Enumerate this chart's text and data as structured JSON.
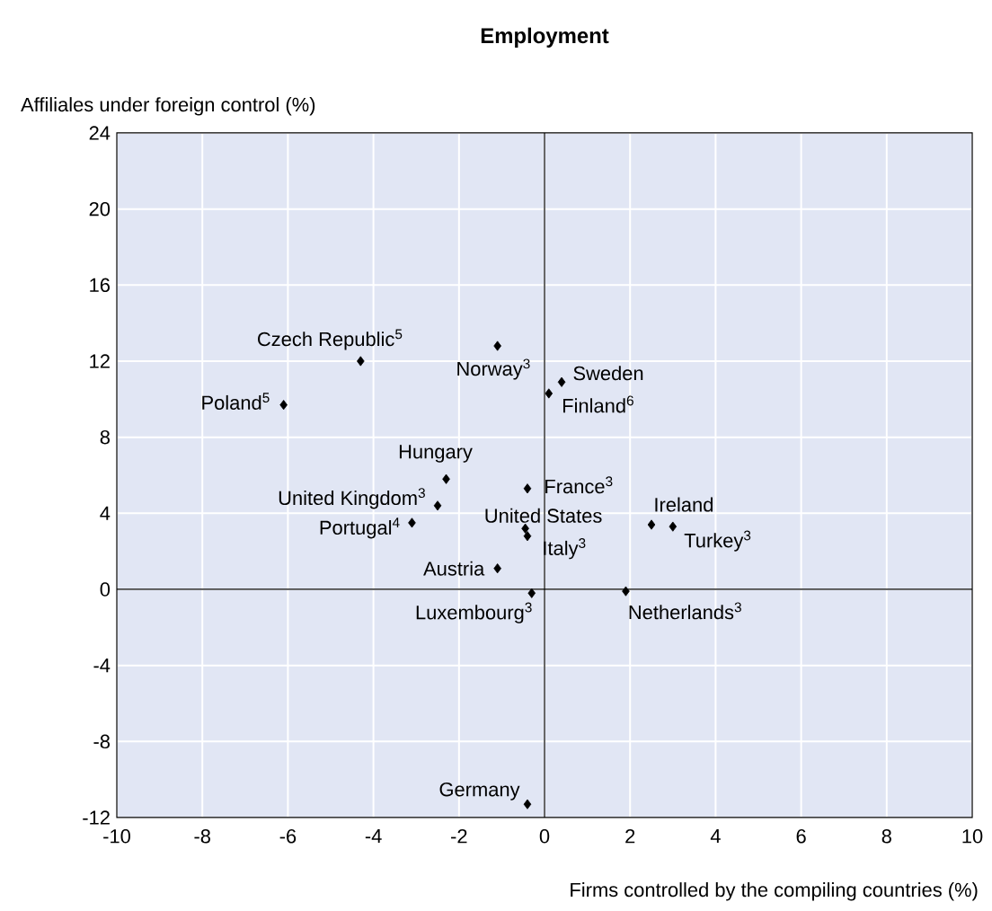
{
  "chart_data": {
    "type": "scatter",
    "title": "Employment",
    "xlabel": "Firms controlled by the compiling countries (%)",
    "ylabel": "Affiliales under foreign control (%)",
    "xlim": [
      -10,
      10
    ],
    "xticks": [
      -10,
      -8,
      -6,
      -4,
      -2,
      0,
      2,
      4,
      6,
      8,
      10
    ],
    "ylim": [
      -12,
      24
    ],
    "yticks": [
      -12,
      -8,
      -4,
      0,
      4,
      8,
      12,
      16,
      20,
      24
    ],
    "grid": true,
    "marker": "diamond",
    "series": [
      {
        "color": "#000000",
        "x": [
          -4.3,
          -1.1,
          -6.1,
          0.4,
          0.1,
          -2.3,
          -2.5,
          -3.1,
          -0.4,
          -0.45,
          -0.4,
          -1.1,
          -0.3,
          1.9,
          2.5,
          3.0,
          -0.4
        ],
        "values": [
          12.0,
          12.8,
          9.7,
          10.9,
          10.3,
          5.8,
          4.4,
          3.5,
          5.3,
          3.2,
          2.8,
          1.1,
          -0.2,
          -0.1,
          3.4,
          3.3,
          -11.3
        ]
      }
    ],
    "annotations": [
      {
        "text": "Czech Republic$^{5}$",
        "x": -4.3,
        "y": 12.0
      },
      {
        "text": "Norway$^{3}$",
        "x": -1.1,
        "y": 12.8
      },
      {
        "text": "Poland$^{5}$",
        "x": -6.1,
        "y": 9.7
      },
      {
        "text": "Sweden",
        "x": 0.4,
        "y": 10.9
      },
      {
        "text": "Finland$^{6}$",
        "x": 0.1,
        "y": 10.3
      },
      {
        "text": "Hungary",
        "x": -2.3,
        "y": 5.8
      },
      {
        "text": "United Kingdom$^{3}$",
        "x": -2.5,
        "y": 4.4
      },
      {
        "text": "Portugal$^{4}$",
        "x": -3.1,
        "y": 3.5
      },
      {
        "text": "France$^{3}$",
        "x": -0.4,
        "y": 5.3
      },
      {
        "text": "United States",
        "x": -0.45,
        "y": 3.2
      },
      {
        "text": "Italy$^{3}$",
        "x": -0.4,
        "y": 2.8
      },
      {
        "text": "Austria",
        "x": -1.1,
        "y": 1.1
      },
      {
        "text": "Luxembourg$^{3}$",
        "x": -0.3,
        "y": -0.2
      },
      {
        "text": "Netherlands$^{3}$",
        "x": 1.9,
        "y": -0.1
      },
      {
        "text": "Ireland",
        "x": 2.5,
        "y": 3.4
      },
      {
        "text": "Turkey$^{3}$",
        "x": 3.0,
        "y": 3.3
      },
      {
        "text": "Germany",
        "x": -0.4,
        "y": -11.3
      }
    ]
  }
}
